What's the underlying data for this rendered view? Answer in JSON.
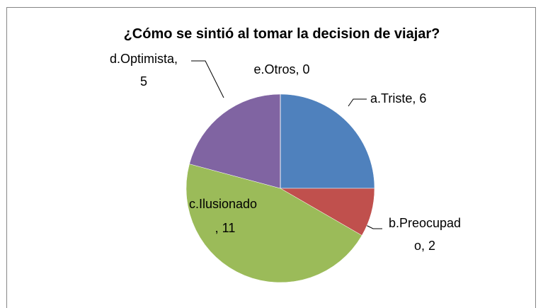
{
  "chart_data": {
    "type": "pie",
    "title": "¿Cómo se sintió al tomar la decision de viajar?",
    "values": [
      6,
      2,
      11,
      5,
      0
    ],
    "value_labels": [
      "a.Triste, 6",
      "b.Preocupado, 2",
      "c.Ilusionado, 11",
      "d.Optimista, 5",
      "e.Otros, 0"
    ],
    "colors": [
      "#4f81bd",
      "#c0504d",
      "#9bbb59",
      "#8064a2",
      "#4bacc6"
    ]
  }
}
